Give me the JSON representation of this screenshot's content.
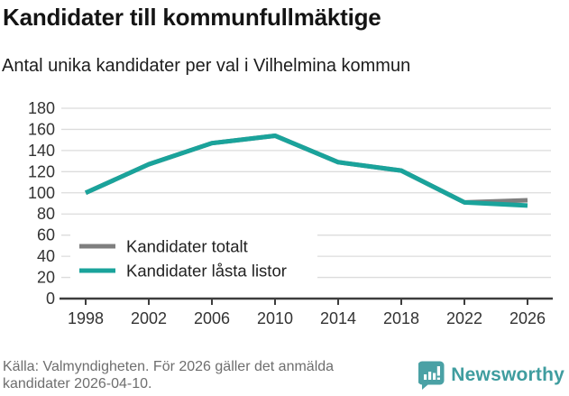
{
  "title": "Kandidater till kommunfullmäktige",
  "subtitle": "Antal unika kandidater per val i Vilhelmina kommun",
  "footer": {
    "source": "Källa: Valmyndigheten. För 2026 gäller det anmälda kandidater 2026-04-10.",
    "brand": "Newsworthy"
  },
  "colors": {
    "total": "#7f7f7f",
    "locked": "#1aa39b",
    "axis": "#3d3d3d",
    "grid": "#dcdcdc",
    "tick_label": "#333333",
    "legend_label": "#222222",
    "brand": "#4aa1a5"
  },
  "chart_data": {
    "type": "line",
    "title": "Kandidater till kommunfullmäktige",
    "subtitle": "Antal unika kandidater per val i Vilhelmina kommun",
    "x": [
      1998,
      2002,
      2006,
      2010,
      2014,
      2018,
      2022,
      2026
    ],
    "xtick_labels": [
      "1998",
      "2002",
      "2006",
      "2010",
      "2014",
      "2018",
      "2022",
      "2026"
    ],
    "series": [
      {
        "name": "Kandidater totalt",
        "color_key": "total",
        "values": [
          100,
          127,
          147,
          154,
          129,
          121,
          91,
          93
        ]
      },
      {
        "name": "Kandidater låsta listor",
        "color_key": "locked",
        "values": [
          100,
          127,
          147,
          154,
          129,
          121,
          91,
          88
        ]
      }
    ],
    "ylim": [
      0,
      180
    ],
    "ytick_step": 20,
    "grid": "horizontal",
    "legend_position": "inside-bottom-left"
  }
}
